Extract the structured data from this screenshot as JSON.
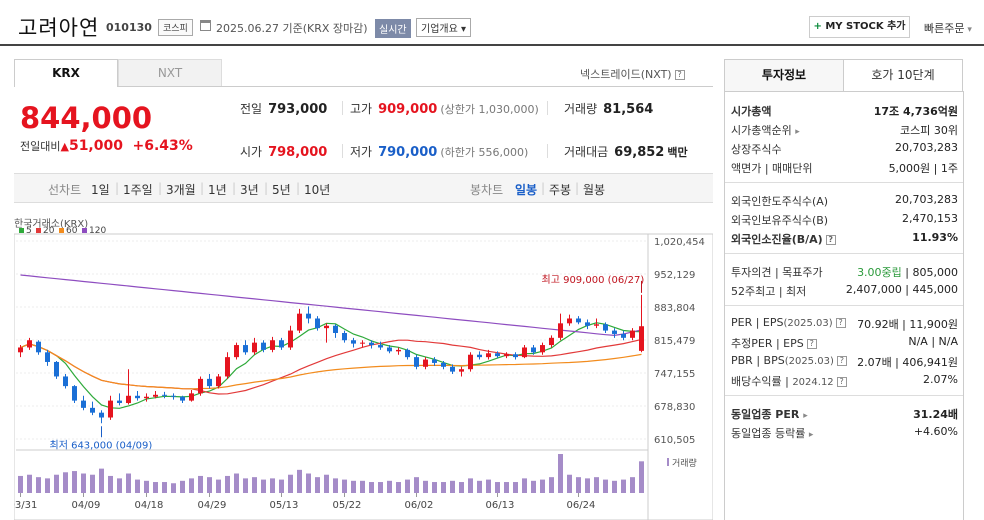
{
  "header": {
    "name": "고려아연",
    "code": "010130",
    "market_badge": "코스피",
    "date_text": "2025.06.27 기준(KRX 장마감)",
    "realtime": "실시간",
    "company_info": "기업개요",
    "mystock": "MY STOCK 추가",
    "quick_order": "빠른주문"
  },
  "tabs": {
    "krx": "KRX",
    "nxt": "NXT",
    "nxt_link": "넥스트레이드(NXT)"
  },
  "price": {
    "current": "844,000",
    "change_label": "전일대비",
    "change": "51,000",
    "change_pct": "+6.43%"
  },
  "quotes": {
    "prev_label": "전일",
    "prev": "793,000",
    "high_label": "고가",
    "high": "909,000",
    "upper": "(상한가 1,030,000)",
    "volume_label": "거래량",
    "volume": "81,564",
    "open_label": "시가",
    "open": "798,000",
    "low_label": "저가",
    "low": "790,000",
    "lower": "(하한가 556,000)",
    "amount_label": "거래대금",
    "amount": "69,852",
    "amount_unit": "백만"
  },
  "toolbar": {
    "line_chart": "선차트",
    "d1": "1일",
    "w1": "1주일",
    "m3": "3개월",
    "y1": "1년",
    "y3": "3년",
    "y5": "5년",
    "y10": "10년",
    "candle_chart": "봉차트",
    "daily": "일봉",
    "weekly": "주봉",
    "monthly": "월봉"
  },
  "chart_data": {
    "type": "candlestick",
    "source_label": "한국거래소(KRX)",
    "ma_legend": [
      {
        "name": "5",
        "color": "#2eaa3a"
      },
      {
        "name": "20",
        "color": "#e23a3a"
      },
      {
        "name": "60",
        "color": "#f28c1e"
      },
      {
        "name": "120",
        "color": "#8e4dc0"
      }
    ],
    "y_ticks": [
      "1,020,454",
      "952,129",
      "883,804",
      "815,479",
      "747,155",
      "678,830",
      "610,505"
    ],
    "y_tick_values": [
      1020454,
      952129,
      883804,
      815479,
      747155,
      678830,
      610505
    ],
    "x_ticks": [
      "03/31",
      "04/09",
      "04/18",
      "04/29",
      "05/13",
      "05/22",
      "06/02",
      "06/13",
      "06/24"
    ],
    "high_annotation": "최고 909,000 (06/27)",
    "low_annotation": "최저 643,000 (04/09)",
    "volume_label": "거래량",
    "candles": [
      [
        790000,
        800000,
        805000,
        780000
      ],
      [
        800000,
        815000,
        820000,
        795000
      ],
      [
        812000,
        790000,
        815000,
        785000
      ],
      [
        790000,
        770000,
        795000,
        762000
      ],
      [
        770000,
        740000,
        772000,
        735000
      ],
      [
        740000,
        720000,
        745000,
        715000
      ],
      [
        720000,
        690000,
        722000,
        685000
      ],
      [
        690000,
        675000,
        700000,
        670000
      ],
      [
        675000,
        665000,
        688000,
        660000
      ],
      [
        665000,
        655000,
        670000,
        643000
      ],
      [
        655000,
        690000,
        700000,
        650000
      ],
      [
        690000,
        685000,
        705000,
        680000
      ],
      [
        685000,
        700000,
        755000,
        682000
      ],
      [
        700000,
        695000,
        710000,
        690000
      ],
      [
        695000,
        698000,
        705000,
        688000
      ],
      [
        698000,
        702000,
        710000,
        695000
      ],
      [
        702000,
        700000,
        708000,
        695000
      ],
      [
        700000,
        698000,
        705000,
        692000
      ],
      [
        698000,
        690000,
        700000,
        685000
      ],
      [
        690000,
        705000,
        712000,
        688000
      ],
      [
        705000,
        735000,
        740000,
        700000
      ],
      [
        735000,
        720000,
        745000,
        715000
      ],
      [
        720000,
        740000,
        745000,
        715000
      ],
      [
        740000,
        780000,
        790000,
        735000
      ],
      [
        780000,
        805000,
        810000,
        775000
      ],
      [
        805000,
        790000,
        815000,
        785000
      ],
      [
        790000,
        810000,
        820000,
        785000
      ],
      [
        810000,
        795000,
        815000,
        790000
      ],
      [
        795000,
        815000,
        822000,
        790000
      ],
      [
        815000,
        800000,
        820000,
        795000
      ],
      [
        800000,
        835000,
        845000,
        795000
      ],
      [
        835000,
        870000,
        880000,
        830000
      ],
      [
        870000,
        860000,
        885000,
        850000
      ],
      [
        860000,
        840000,
        865000,
        835000
      ],
      [
        840000,
        845000,
        850000,
        810000
      ],
      [
        845000,
        830000,
        848000,
        820000
      ],
      [
        830000,
        815000,
        835000,
        810000
      ],
      [
        815000,
        808000,
        820000,
        800000
      ],
      [
        808000,
        810000,
        815000,
        800000
      ],
      [
        810000,
        805000,
        815000,
        798000
      ],
      [
        805000,
        800000,
        812000,
        795000
      ],
      [
        800000,
        792000,
        805000,
        788000
      ],
      [
        792000,
        795000,
        800000,
        785000
      ],
      [
        795000,
        780000,
        798000,
        775000
      ],
      [
        780000,
        760000,
        785000,
        755000
      ],
      [
        760000,
        775000,
        780000,
        755000
      ],
      [
        775000,
        768000,
        780000,
        762000
      ],
      [
        768000,
        760000,
        772000,
        755000
      ],
      [
        760000,
        750000,
        765000,
        745000
      ],
      [
        750000,
        755000,
        760000,
        740000
      ],
      [
        755000,
        785000,
        790000,
        750000
      ],
      [
        785000,
        780000,
        792000,
        775000
      ],
      [
        780000,
        788000,
        795000,
        775000
      ],
      [
        788000,
        782000,
        792000,
        778000
      ],
      [
        782000,
        786000,
        790000,
        778000
      ],
      [
        786000,
        780000,
        790000,
        775000
      ],
      [
        780000,
        800000,
        805000,
        778000
      ],
      [
        800000,
        790000,
        805000,
        785000
      ],
      [
        790000,
        805000,
        810000,
        785000
      ],
      [
        805000,
        820000,
        825000,
        800000
      ],
      [
        820000,
        850000,
        870000,
        815000
      ],
      [
        850000,
        860000,
        868000,
        845000
      ],
      [
        860000,
        852000,
        865000,
        848000
      ],
      [
        852000,
        845000,
        858000,
        838000
      ],
      [
        845000,
        848000,
        860000,
        840000
      ],
      [
        848000,
        835000,
        852000,
        830000
      ],
      [
        835000,
        828000,
        840000,
        820000
      ],
      [
        828000,
        820000,
        835000,
        815000
      ],
      [
        820000,
        835000,
        840000,
        815000
      ],
      [
        793000,
        844000,
        909000,
        790000
      ]
    ],
    "volumes": [
      14,
      15,
      13,
      12,
      15,
      17,
      18,
      16,
      15,
      20,
      14,
      12,
      16,
      11,
      10,
      9,
      9,
      8,
      10,
      12,
      14,
      13,
      11,
      14,
      16,
      12,
      13,
      11,
      12,
      11,
      15,
      19,
      16,
      13,
      15,
      12,
      11,
      10,
      10,
      9,
      9,
      10,
      9,
      11,
      13,
      10,
      9,
      9,
      10,
      9,
      12,
      10,
      11,
      9,
      9,
      9,
      12,
      10,
      11,
      13,
      32,
      15,
      13,
      12,
      13,
      11,
      10,
      11,
      13,
      26
    ]
  },
  "panel": {
    "tab_invest": "투자정보",
    "tab_hoga": "호가 10단계",
    "market_cap_label": "시가총액",
    "market_cap": "17조 4,736억원",
    "market_cap_rank_label": "시가총액순위",
    "market_cap_rank": "코스피 30위",
    "shares_label": "상장주식수",
    "shares": "20,703,283",
    "face_label": "액면가 | 매매단위",
    "face": "5,000원 | 1주",
    "foreign_limit_label": "외국인한도주식수(A)",
    "foreign_limit": "20,703,283",
    "foreign_hold_label": "외국인보유주식수(B)",
    "foreign_hold": "2,470,153",
    "foreign_ratio_label": "외국인소진율(B/A)",
    "foreign_ratio": "11.93%",
    "opinion_label": "투자의견 | 목표주가",
    "opinion": "3.00중립",
    "target": "805,000",
    "w52_label": "52주최고 | 최저",
    "w52": "2,407,000 | 445,000",
    "per_label": "PER | EPS",
    "per_period": "(2025.03)",
    "per": "70.92배 | 11,900원",
    "est_label": "추정PER | EPS",
    "est": "N/A | N/A",
    "pbr_label": "PBR | BPS",
    "pbr_period": "(2025.03)",
    "pbr": "2.07배 | 406,941원",
    "div_label": "배당수익률",
    "div_period": "2024.12",
    "div": "2.07%",
    "ind_per_label": "동일업종 PER",
    "ind_per": "31.24배",
    "ind_rate_label": "동일업종 등락률",
    "ind_rate": "+4.60%"
  }
}
